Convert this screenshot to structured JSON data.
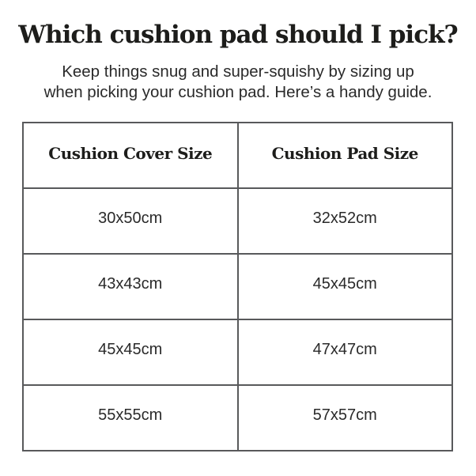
{
  "header": {
    "title": "Which cushion pad should I pick?",
    "subtitle_line1": "Keep things snug and super-squishy by sizing up",
    "subtitle_line2": "when picking your cushion pad. Here’s a handy guide."
  },
  "table": {
    "headers": [
      "Cushion Cover Size",
      "Cushion Pad Size"
    ],
    "rows": [
      [
        "30x50cm",
        "32x52cm"
      ],
      [
        "43x43cm",
        "45x45cm"
      ],
      [
        "45x45cm",
        "47x47cm"
      ],
      [
        "55x55cm",
        "57x57cm"
      ]
    ]
  },
  "colors": {
    "background": "#ffffff",
    "text": "#231f20",
    "table_border": "#58595b"
  }
}
